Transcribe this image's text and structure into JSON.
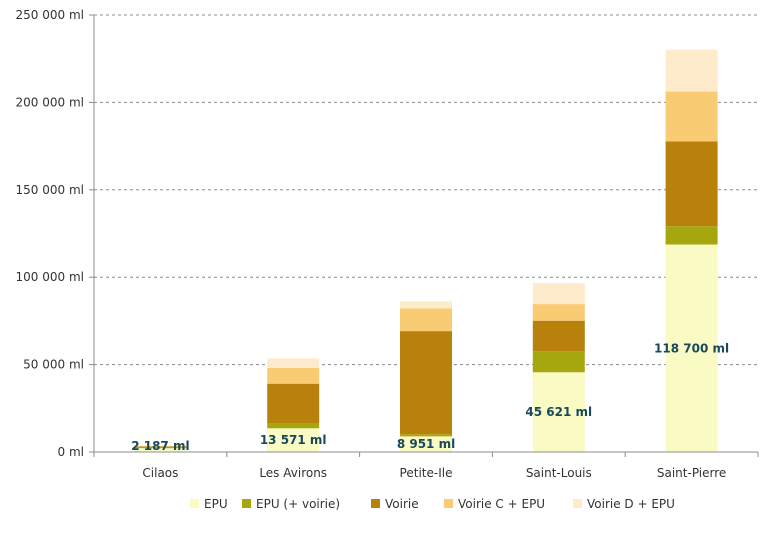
{
  "chart_data": {
    "type": "bar",
    "stacked": true,
    "categories": [
      "Cilaos",
      "Les Avirons",
      "Petite-Ile",
      "Saint-Louis",
      "Saint-Pierre"
    ],
    "y_tick_labels": [
      "0 ml",
      "50 000 ml",
      "100 000 ml",
      "150 000 ml",
      "200 000 ml",
      "250 000 ml"
    ],
    "ylim": [
      0,
      250000
    ],
    "grid": true,
    "legend_position": "bottom",
    "series": [
      {
        "name": "EPU",
        "color": "#FAFAC4",
        "values": [
          2187,
          13571,
          8951,
          45621,
          118700
        ]
      },
      {
        "name": "EPU (+ voirie)",
        "color": "#A6A60E",
        "values": [
          800,
          3000,
          1200,
          12000,
          10500
        ]
      },
      {
        "name": "Voirie",
        "color": "#B8810C",
        "values": [
          300,
          22500,
          59000,
          17500,
          48500
        ]
      },
      {
        "name": "Voirie C + EPU",
        "color": "#F9CB73",
        "values": [
          200,
          9000,
          13000,
          9500,
          28500
        ]
      },
      {
        "name": "Voirie D + EPU",
        "color": "#FDEBCB",
        "values": [
          100,
          5500,
          4000,
          12000,
          24000
        ]
      }
    ],
    "data_labels": [
      "2 187 ml",
      "13 571 ml",
      "8 951 ml",
      "45 621 ml",
      "118 700 ml"
    ]
  }
}
